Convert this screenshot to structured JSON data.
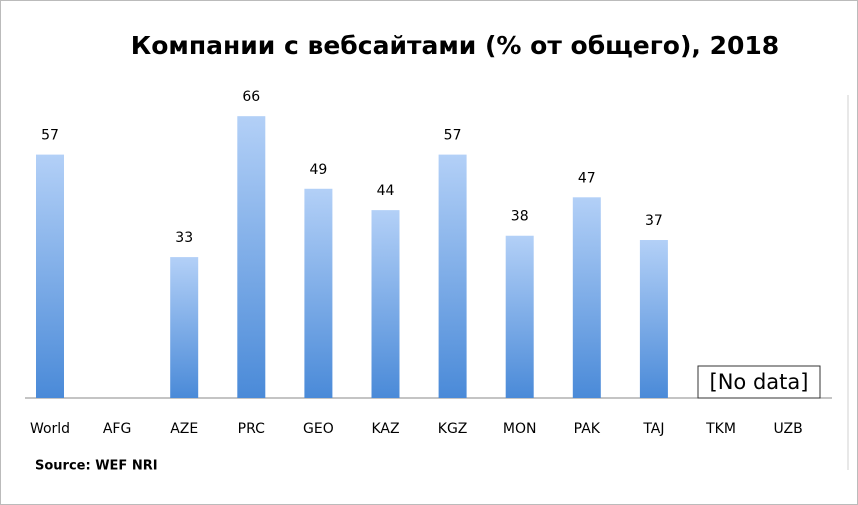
{
  "chart_data": {
    "type": "bar",
    "title": "Компании с вебсайтами (% от общего), 2018",
    "categories": [
      "World",
      "AFG",
      "AZE",
      "PRC",
      "GEO",
      "KAZ",
      "KGZ",
      "MON",
      "PAK",
      "TAJ",
      "TKM",
      "UZB"
    ],
    "values": [
      57,
      null,
      33,
      66,
      49,
      44,
      57,
      38,
      47,
      37,
      null,
      null
    ],
    "color": "#5b9be6",
    "annotation": "[No data]",
    "source": "Source: WEF NRI"
  }
}
